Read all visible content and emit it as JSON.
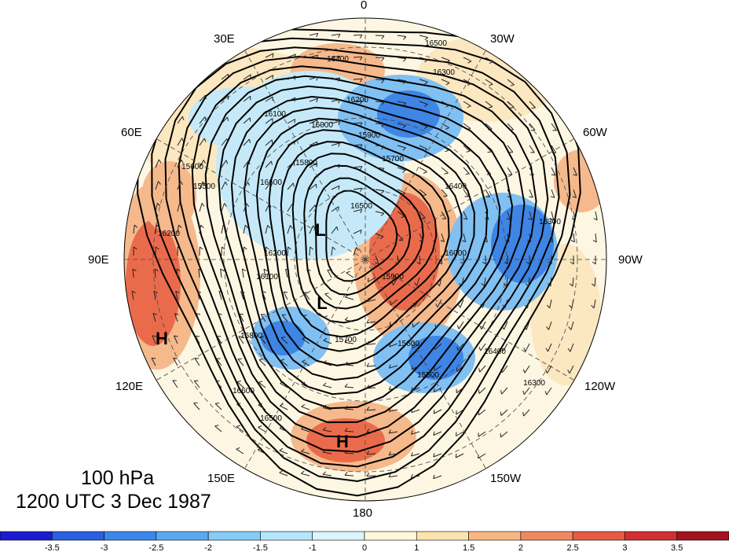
{
  "caption": {
    "level": "100 hPa",
    "time": "1200 UTC 3 Dec 1987"
  },
  "longitude_labels": [
    {
      "key": "lon0",
      "text": "0"
    },
    {
      "key": "lon30w",
      "text": "30W"
    },
    {
      "key": "lon60w",
      "text": "60W"
    },
    {
      "key": "lon90w",
      "text": "90W"
    },
    {
      "key": "lon120w",
      "text": "120W"
    },
    {
      "key": "lon150w",
      "text": "150W"
    },
    {
      "key": "lon180",
      "text": "180"
    },
    {
      "key": "lon150e",
      "text": "150E"
    },
    {
      "key": "lon120e",
      "text": "120E"
    },
    {
      "key": "lon90e",
      "text": "90E"
    },
    {
      "key": "lon60e",
      "text": "60E"
    },
    {
      "key": "lon30e",
      "text": "30E"
    }
  ],
  "pressure_centers": [
    {
      "key": "low_pole",
      "text": "L"
    },
    {
      "key": "low_south",
      "text": "L"
    },
    {
      "key": "high_east",
      "text": "H"
    },
    {
      "key": "high_bottom",
      "text": "H"
    }
  ],
  "contour_labels": [
    "16500",
    "16400",
    "16300",
    "16200",
    "16100",
    "16000",
    "15900",
    "15800",
    "15700",
    "15600",
    "15500",
    "16600"
  ],
  "colorbar": {
    "ticks": [
      "-3.5",
      "-3",
      "-2.5",
      "-2",
      "-1.5",
      "-1",
      "0",
      "1",
      "1.5",
      "2",
      "2.5",
      "3",
      "3.5"
    ],
    "colors": [
      "#1c1ccf",
      "#2a5fe0",
      "#3c87ea",
      "#5aa8f0",
      "#86ccf7",
      "#b5e7fb",
      "#dcf4fb",
      "#fdf7dc",
      "#fde3b0",
      "#f8b883",
      "#f08a5e",
      "#e65a45",
      "#d22f32",
      "#a3121f"
    ]
  },
  "anomaly_colors": {
    "neg_strong": "#3e85e4",
    "neg_mid": "#80c0f2",
    "neg_light": "#c5e9f8",
    "pos_light": "#fbe7c0",
    "pos_mid": "#f5b98c",
    "pos_strong": "#ea6b4c"
  }
}
